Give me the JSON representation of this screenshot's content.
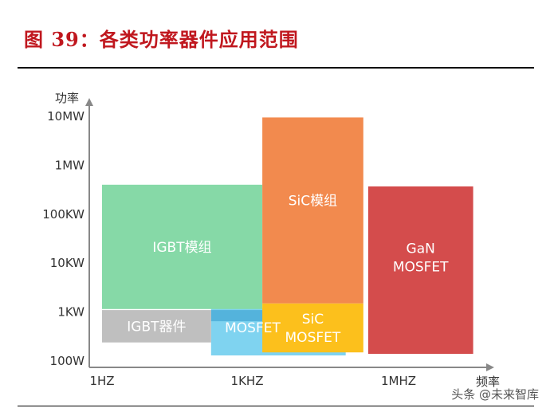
{
  "figure": {
    "title": "图 39：各类功率器件应用范围"
  },
  "watermark": "头条 @未来智库",
  "chart_data": {
    "type": "range-blocks",
    "title": "",
    "ylabel": "功率",
    "xlabel": "频率",
    "x_scale": "log",
    "y_scale": "log",
    "x_ticks": [
      {
        "label": "1HZ",
        "value": 1
      },
      {
        "label": "1KHZ",
        "value": 1000
      },
      {
        "label": "1MHZ",
        "value": 1000000
      }
    ],
    "y_ticks": [
      {
        "label": "100W",
        "value": 100
      },
      {
        "label": "1KW",
        "value": 1000
      },
      {
        "label": "10KW",
        "value": 10000
      },
      {
        "label": "100KW",
        "value": 100000
      },
      {
        "label": "1MW",
        "value": 1000000
      },
      {
        "label": "10MW",
        "value": 10000000
      }
    ],
    "xlim": [
      0.5,
      800000000
    ],
    "ylim": [
      100,
      10000000
    ],
    "blocks": [
      {
        "name": "MOSFET",
        "label_lines": [
          "MOSFET"
        ],
        "x_range": [
          180,
          90000
        ],
        "y_range": [
          130,
          1200
        ],
        "color": "#7fd3f0",
        "label_color": "#ffffff"
      },
      {
        "name": "IGBT模组",
        "label_lines": [
          "IGBT模组"
        ],
        "x_range": [
          1,
          2000
        ],
        "y_range": [
          1150,
          400000
        ],
        "color": "#86d9a7",
        "label_color": "#ffffff"
      },
      {
        "name": "IGBT器件",
        "label_lines": [
          "IGBT器件"
        ],
        "x_range": [
          1,
          180
        ],
        "y_range": [
          240,
          1100
        ],
        "color": "#bfbfbf",
        "label_color": "#ffffff"
      },
      {
        "name": "SiC模组",
        "label_lines": [
          "SiC模组"
        ],
        "x_range": [
          2000,
          200000
        ],
        "y_range": [
          1500,
          9500000
        ],
        "color": "#f28a4e",
        "label_color": "#ffffff"
      },
      {
        "name": "SiC MOSFET",
        "label_lines": [
          "SiC",
          "MOSFET"
        ],
        "x_range": [
          2000,
          200000
        ],
        "y_range": [
          150,
          1500
        ],
        "color": "#fcc01c",
        "label_color": "#ffffff"
      },
      {
        "name": "GaN MOSFET",
        "label_lines": [
          "GaN",
          "MOSFET"
        ],
        "x_range": [
          250000,
          30000000
        ],
        "y_range": [
          140,
          370000
        ],
        "color": "#d44c4c",
        "label_color": "#ffffff"
      }
    ],
    "overlay_bar": {
      "name": "MOSFET",
      "x_range": [
        180,
        2300
      ],
      "y_range": [
        650,
        1100
      ],
      "color": "#54b3dc"
    },
    "grid": false,
    "legend": "none"
  }
}
